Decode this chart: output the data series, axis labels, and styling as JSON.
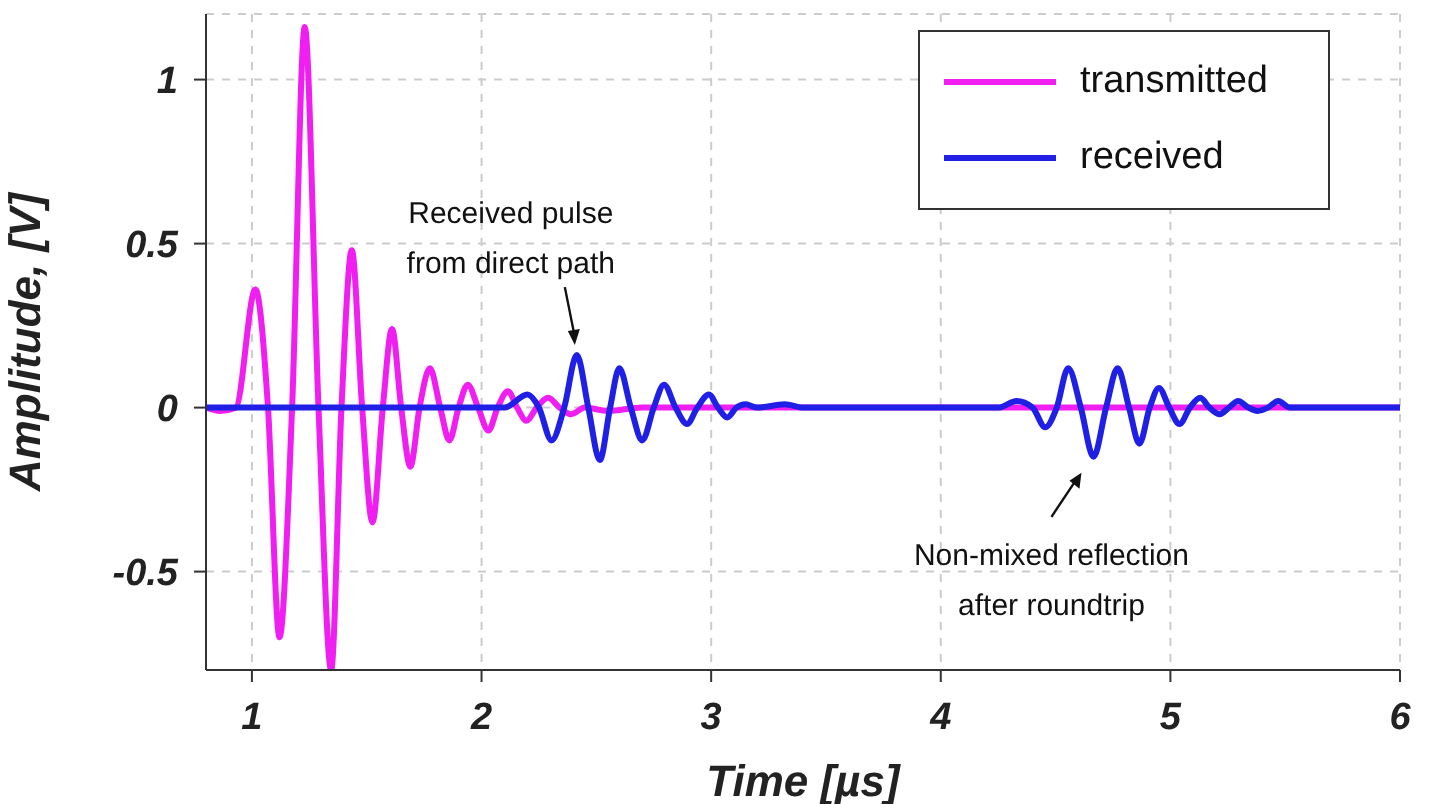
{
  "chart_data": {
    "type": "line",
    "xlabel": "Time [µs]",
    "ylabel": "Amplitude, [V]",
    "xlim": [
      0.8,
      6
    ],
    "xticks": [
      1,
      2,
      3,
      4,
      5,
      6
    ],
    "ylim": [
      -0.8,
      1.2
    ],
    "yticks": [
      -0.5,
      0,
      0.5,
      1
    ],
    "grid": true,
    "legend": "top right",
    "series": [
      {
        "name": "transmitted",
        "color": "#f01ef0",
        "x": [
          0.8,
          0.86,
          0.93,
          1.015,
          1.07,
          1.12,
          1.175,
          1.23,
          1.29,
          1.345,
          1.39,
          1.435,
          1.48,
          1.525,
          1.57,
          1.61,
          1.65,
          1.69,
          1.73,
          1.775,
          1.82,
          1.86,
          1.9,
          1.94,
          1.985,
          2.03,
          2.07,
          2.115,
          2.155,
          2.195,
          2.24,
          2.29,
          2.34,
          2.39,
          2.45,
          2.55,
          2.7,
          3.0,
          6
        ],
        "values": [
          0,
          -0.01,
          0,
          0.36,
          0,
          -0.7,
          0,
          1.16,
          0,
          -0.8,
          0,
          0.48,
          0,
          -0.35,
          0,
          0.24,
          0,
          -0.18,
          0,
          0.12,
          0,
          -0.1,
          0,
          0.07,
          0,
          -0.07,
          0,
          0.05,
          0,
          -0.04,
          0,
          0.03,
          0,
          -0.02,
          0,
          -0.01,
          0,
          0,
          0
        ]
      },
      {
        "name": "received",
        "color": "#1f1fe6",
        "x": [
          0.8,
          2.1,
          2.2,
          2.25,
          2.305,
          2.36,
          2.415,
          2.465,
          2.515,
          2.56,
          2.6,
          2.65,
          2.7,
          2.75,
          2.795,
          2.845,
          2.895,
          2.94,
          2.99,
          3.03,
          3.07,
          3.11,
          3.15,
          3.2,
          3.32,
          3.4,
          4.25,
          4.33,
          4.4,
          4.455,
          4.505,
          4.555,
          4.61,
          4.665,
          4.72,
          4.77,
          4.82,
          4.865,
          4.91,
          4.95,
          4.995,
          5.04,
          5.085,
          5.13,
          5.17,
          5.215,
          5.255,
          5.295,
          5.34,
          5.38,
          5.425,
          5.47,
          5.52,
          6
        ],
        "values": [
          0,
          0,
          0.04,
          0,
          -0.1,
          0,
          0.16,
          0,
          -0.16,
          0,
          0.12,
          0,
          -0.1,
          0,
          0.07,
          0,
          -0.05,
          0,
          0.04,
          0,
          -0.03,
          0,
          0.01,
          0,
          0.01,
          0,
          0,
          0.02,
          0,
          -0.06,
          0,
          0.12,
          0,
          -0.15,
          0,
          0.12,
          0,
          -0.11,
          0,
          0.06,
          0,
          -0.05,
          0,
          0.03,
          0,
          -0.02,
          0,
          0.02,
          0,
          -0.01,
          0,
          0.02,
          0,
          0
        ]
      }
    ],
    "annotations": [
      {
        "text": "Received pulse\nfrom direct path",
        "x": 2.415,
        "y": 0.16
      },
      {
        "text": "Non-mixed reflection\nafter roundtrip",
        "x": 4.665,
        "y": -0.15
      }
    ]
  }
}
